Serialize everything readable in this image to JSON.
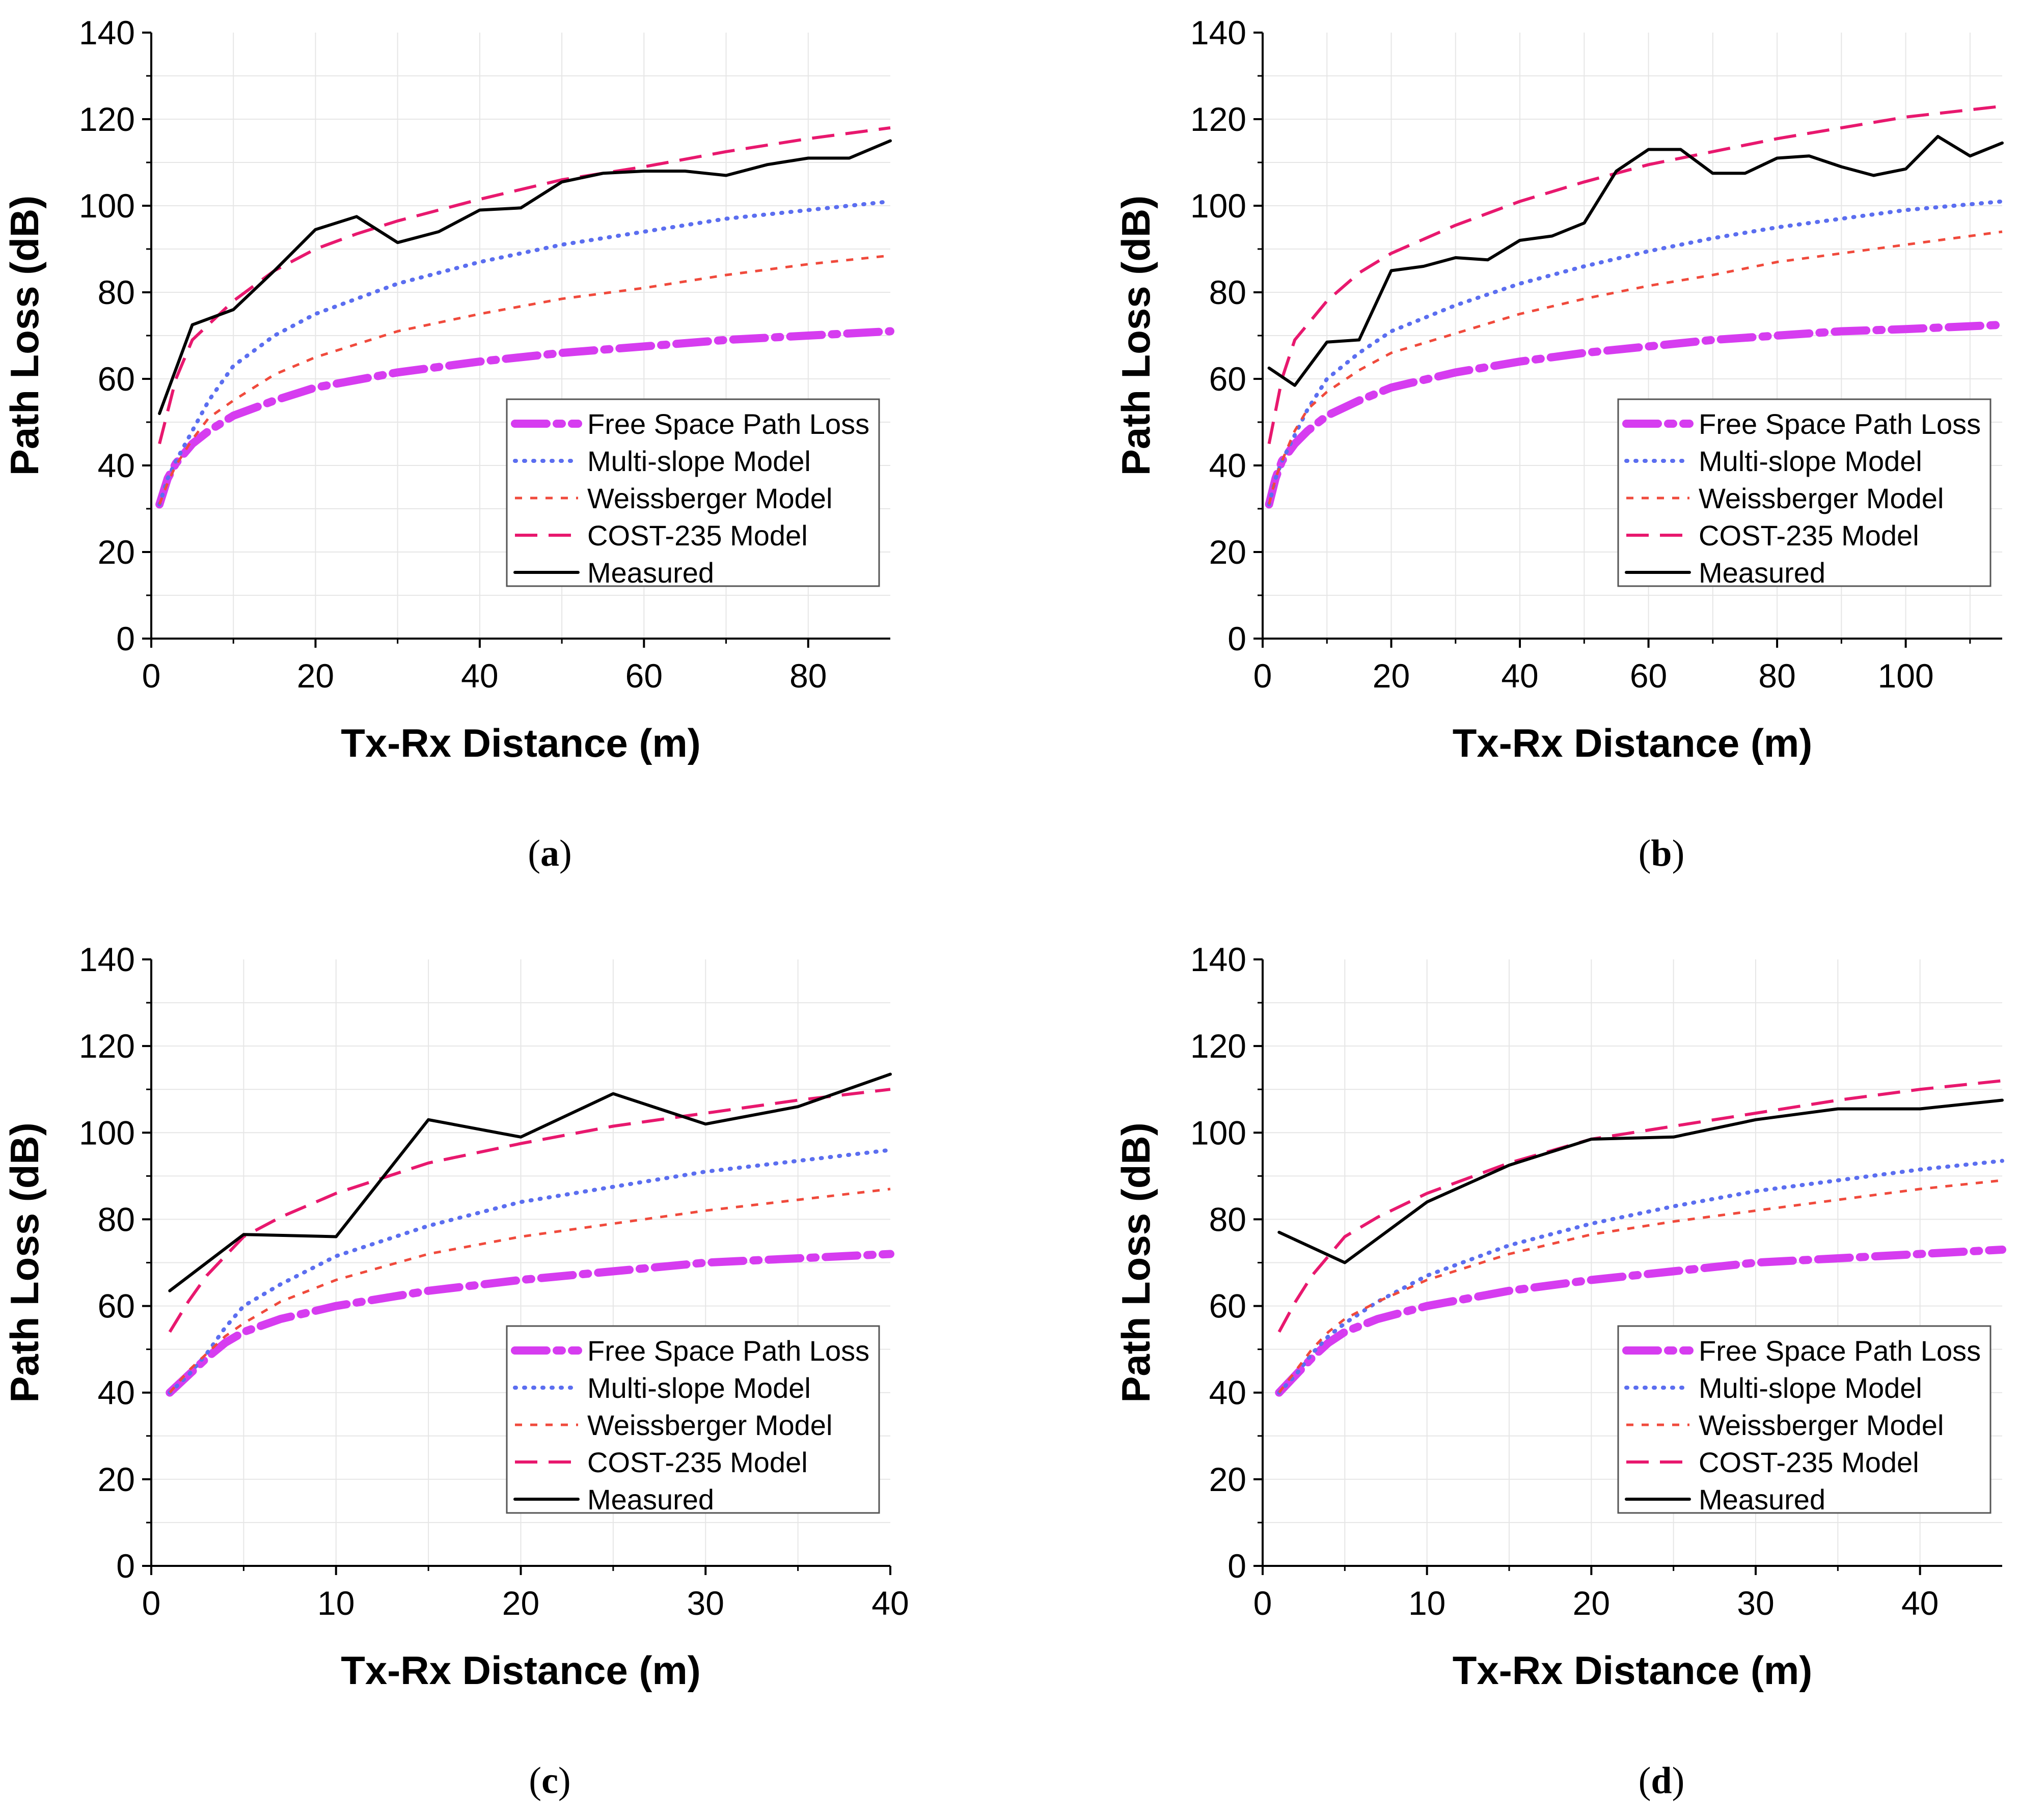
{
  "chart_data": [
    {
      "type": "line",
      "panel_label": "a",
      "xlabel": "Tx-Rx Distance (m)",
      "ylabel": "Path Loss (dB)",
      "xlim": [
        0,
        90
      ],
      "ylim": [
        0,
        140
      ],
      "xticks": [
        0,
        20,
        40,
        60,
        80
      ],
      "yticks": [
        0,
        20,
        40,
        60,
        80,
        100,
        120,
        140
      ],
      "grid": true,
      "legend_position": "bottom-right",
      "series": [
        {
          "name": "Free Space Path Loss",
          "style": "dashdot-thick",
          "color": "#d63cf0",
          "x": [
            1,
            2,
            3,
            5,
            7,
            10,
            15,
            20,
            30,
            40,
            50,
            60,
            70,
            80,
            90
          ],
          "y": [
            31,
            37,
            40.5,
            45,
            48,
            51.5,
            55,
            58,
            61.5,
            64,
            66,
            67.5,
            69,
            70,
            71
          ]
        },
        {
          "name": "Multi-slope Model",
          "style": "dotted",
          "color": "#5b6ef0",
          "x": [
            1,
            2,
            3,
            5,
            7,
            10,
            15,
            20,
            30,
            40,
            50,
            60,
            70,
            80,
            90
          ],
          "y": [
            31,
            37,
            41,
            48,
            55,
            63,
            70,
            75,
            82,
            87,
            91,
            94,
            97,
            99,
            101
          ]
        },
        {
          "name": "Weissberger Model",
          "style": "short-dash",
          "color": "#f04a3c",
          "x": [
            1,
            2,
            3,
            5,
            7,
            10,
            15,
            20,
            30,
            40,
            50,
            60,
            70,
            80,
            90
          ],
          "y": [
            31,
            36,
            40,
            46,
            51,
            55,
            61,
            65,
            71,
            75,
            78.5,
            81,
            84,
            86.5,
            88.5
          ]
        },
        {
          "name": "COST-235 Model",
          "style": "long-dash",
          "color": "#e8186e",
          "x": [
            1,
            3,
            5,
            10,
            15,
            20,
            25,
            30,
            40,
            50,
            60,
            70,
            80,
            90
          ],
          "y": [
            45,
            60,
            69,
            78,
            85,
            90,
            93.5,
            96.5,
            101.5,
            106,
            109,
            112.5,
            115.5,
            118
          ]
        },
        {
          "name": "Measured",
          "style": "solid",
          "color": "#000000",
          "x": [
            1,
            5,
            10,
            15,
            20,
            25,
            30,
            35,
            40,
            45,
            50,
            55,
            60,
            65,
            70,
            75,
            80,
            85,
            90
          ],
          "y": [
            52,
            72.5,
            76,
            85,
            94.5,
            97.5,
            91.5,
            94,
            99,
            99.5,
            105.5,
            107.5,
            108,
            108,
            107,
            109.5,
            111,
            111,
            115
          ]
        }
      ]
    },
    {
      "type": "line",
      "panel_label": "b",
      "xlabel": "Tx-Rx Distance (m)",
      "ylabel": "Path Loss (dB)",
      "xlim": [
        0,
        115
      ],
      "ylim": [
        0,
        140
      ],
      "xticks": [
        0,
        20,
        40,
        60,
        80,
        100
      ],
      "yticks": [
        0,
        20,
        40,
        60,
        80,
        100,
        120,
        140
      ],
      "grid": true,
      "legend_position": "bottom-right",
      "series": [
        {
          "name": "Free Space Path Loss",
          "style": "dashdot-thick",
          "color": "#d63cf0",
          "x": [
            1,
            2,
            3,
            5,
            7,
            10,
            15,
            20,
            30,
            40,
            50,
            60,
            70,
            80,
            90,
            100,
            115
          ],
          "y": [
            31,
            37,
            41,
            45,
            48,
            51.5,
            55,
            58,
            61.5,
            64,
            66,
            67.5,
            69,
            70,
            71,
            71.5,
            72.5
          ]
        },
        {
          "name": "Multi-slope Model",
          "style": "dotted",
          "color": "#5b6ef0",
          "x": [
            1,
            2,
            3,
            5,
            7,
            10,
            15,
            20,
            30,
            40,
            50,
            60,
            70,
            80,
            90,
            100,
            115
          ],
          "y": [
            31,
            37,
            41,
            47,
            53,
            60,
            66,
            71,
            77,
            82,
            86,
            89.5,
            92.5,
            95,
            97,
            99,
            101
          ]
        },
        {
          "name": "Weissberger Model",
          "style": "short-dash",
          "color": "#f04a3c",
          "x": [
            1,
            2,
            3,
            5,
            7,
            10,
            15,
            20,
            30,
            40,
            50,
            60,
            70,
            80,
            90,
            100,
            115
          ],
          "y": [
            31,
            37,
            41,
            48,
            53,
            57,
            62,
            66,
            70.5,
            75,
            78.5,
            81.5,
            84,
            87,
            89,
            91,
            94
          ]
        },
        {
          "name": "COST-235 Model",
          "style": "long-dash",
          "color": "#e8186e",
          "x": [
            1,
            3,
            5,
            10,
            15,
            20,
            30,
            40,
            50,
            60,
            70,
            80,
            90,
            100,
            115
          ],
          "y": [
            45,
            60,
            69,
            78,
            84.5,
            89,
            95.5,
            101,
            105.5,
            109.5,
            112.5,
            115.5,
            118,
            120.5,
            123
          ]
        },
        {
          "name": "Measured",
          "style": "solid",
          "color": "#000000",
          "x": [
            1,
            5,
            10,
            15,
            20,
            25,
            30,
            35,
            40,
            45,
            50,
            55,
            60,
            65,
            70,
            75,
            80,
            85,
            90,
            95,
            100,
            105,
            110,
            115
          ],
          "y": [
            62.5,
            58.5,
            68.5,
            69,
            85,
            86,
            88,
            87.5,
            92,
            93,
            96,
            108,
            113,
            113,
            107.5,
            107.5,
            111,
            111.5,
            109,
            107,
            108.5,
            116,
            111.5,
            114.5
          ]
        }
      ]
    },
    {
      "type": "line",
      "panel_label": "c",
      "xlabel": "Tx-Rx Distance (m)",
      "ylabel": "Path Loss (dB)",
      "xlim": [
        0,
        40
      ],
      "ylim": [
        0,
        140
      ],
      "xticks": [
        0,
        10,
        20,
        30,
        40
      ],
      "yticks": [
        0,
        20,
        40,
        60,
        80,
        100,
        120,
        140
      ],
      "grid": true,
      "legend_position": "bottom-right",
      "series": [
        {
          "name": "Free Space Path Loss",
          "style": "dashdot-thick",
          "color": "#d63cf0",
          "x": [
            1,
            2,
            3,
            4,
            5,
            7,
            10,
            15,
            20,
            25,
            30,
            35,
            40
          ],
          "y": [
            40,
            44,
            48,
            51.5,
            54,
            57,
            60,
            63.5,
            66,
            68,
            70,
            71,
            72
          ]
        },
        {
          "name": "Multi-slope Model",
          "style": "dotted",
          "color": "#5b6ef0",
          "x": [
            1,
            2,
            3,
            4,
            5,
            7,
            10,
            15,
            20,
            25,
            30,
            35,
            40
          ],
          "y": [
            40,
            44,
            49,
            55,
            60,
            65,
            71.5,
            78.5,
            84,
            87.5,
            91,
            93.5,
            96
          ]
        },
        {
          "name": "Weissberger Model",
          "style": "short-dash",
          "color": "#f04a3c",
          "x": [
            1,
            2,
            3,
            4,
            5,
            7,
            10,
            15,
            20,
            25,
            30,
            35,
            40
          ],
          "y": [
            40,
            45,
            49,
            53,
            56,
            61,
            66,
            72,
            76,
            79,
            82,
            84.5,
            87
          ]
        },
        {
          "name": "COST-235 Model",
          "style": "long-dash",
          "color": "#e8186e",
          "x": [
            1,
            2,
            3,
            5,
            7,
            10,
            15,
            20,
            25,
            30,
            35,
            40
          ],
          "y": [
            54,
            61,
            67,
            76,
            80.5,
            86,
            93,
            97.5,
            101.5,
            104.5,
            107.5,
            110
          ]
        },
        {
          "name": "Measured",
          "style": "solid",
          "color": "#000000",
          "x": [
            1,
            5,
            10,
            15,
            20,
            25,
            30,
            35,
            40
          ],
          "y": [
            63.5,
            76.5,
            76,
            103,
            99,
            109,
            102,
            106,
            113.5
          ]
        }
      ]
    },
    {
      "type": "line",
      "panel_label": "d",
      "xlabel": "Tx-Rx Distance (m)",
      "ylabel": "Path Loss (dB)",
      "xlim": [
        0,
        45
      ],
      "ylim": [
        0,
        140
      ],
      "xticks": [
        0,
        10,
        20,
        30,
        40
      ],
      "yticks": [
        0,
        20,
        40,
        60,
        80,
        100,
        120,
        140
      ],
      "grid": true,
      "legend_position": "bottom-right",
      "series": [
        {
          "name": "Free Space Path Loss",
          "style": "dashdot-thick",
          "color": "#d63cf0",
          "x": [
            1,
            2,
            3,
            4,
            5,
            7,
            10,
            15,
            20,
            25,
            30,
            35,
            40,
            45
          ],
          "y": [
            40,
            44,
            48,
            51.5,
            54,
            57,
            60,
            63.5,
            66,
            68,
            70,
            71,
            72,
            73
          ]
        },
        {
          "name": "Multi-slope Model",
          "style": "dotted",
          "color": "#5b6ef0",
          "x": [
            1,
            2,
            3,
            4,
            5,
            7,
            10,
            15,
            20,
            25,
            30,
            35,
            40,
            45
          ],
          "y": [
            40,
            44,
            49,
            53,
            56,
            61,
            67,
            74,
            79,
            83,
            86.5,
            89,
            91.5,
            93.5
          ]
        },
        {
          "name": "Weissberger Model",
          "style": "short-dash",
          "color": "#f04a3c",
          "x": [
            1,
            2,
            3,
            4,
            5,
            7,
            10,
            15,
            20,
            25,
            30,
            35,
            40,
            45
          ],
          "y": [
            40,
            45,
            50,
            54,
            57,
            61,
            66,
            72,
            76.5,
            79.5,
            82,
            84.5,
            87,
            89
          ]
        },
        {
          "name": "COST-235 Model",
          "style": "long-dash",
          "color": "#e8186e",
          "x": [
            1,
            2,
            3,
            5,
            7,
            10,
            15,
            20,
            25,
            30,
            35,
            40,
            45
          ],
          "y": [
            54,
            61,
            67,
            76,
            80.5,
            86,
            93,
            98.5,
            101.5,
            104.5,
            107.5,
            110,
            112
          ]
        },
        {
          "name": "Measured",
          "style": "solid",
          "color": "#000000",
          "x": [
            1,
            5,
            10,
            15,
            20,
            25,
            30,
            35,
            40,
            45
          ],
          "y": [
            77,
            70,
            84,
            92.5,
            98.5,
            99,
            103,
            105.5,
            105.5,
            107.5
          ]
        }
      ]
    }
  ]
}
